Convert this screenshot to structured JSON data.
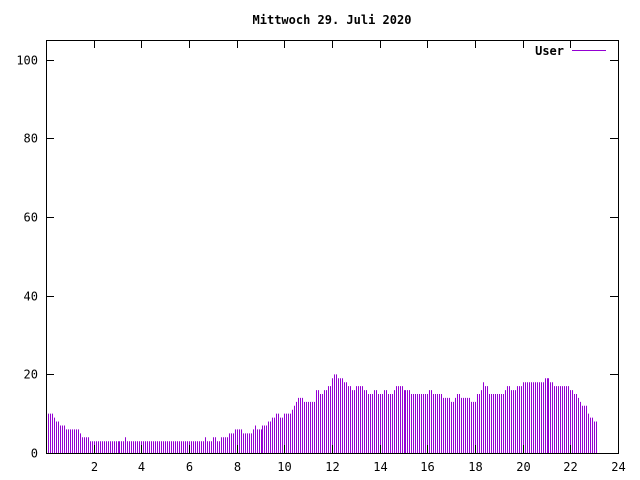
{
  "chart_data": {
    "type": "bar",
    "title": "Mittwoch 29. Juli 2020",
    "xlabel": "",
    "ylabel": "",
    "xlim": [
      0,
      24
    ],
    "ylim": [
      0,
      105
    ],
    "grid": false,
    "legend_position": "top-right",
    "series_color": "#9400d3",
    "xticks": [
      {
        "value": 2,
        "label": "2"
      },
      {
        "value": 4,
        "label": "4"
      },
      {
        "value": 6,
        "label": "6"
      },
      {
        "value": 8,
        "label": "8"
      },
      {
        "value": 10,
        "label": "10"
      },
      {
        "value": 12,
        "label": "12"
      },
      {
        "value": 14,
        "label": "14"
      },
      {
        "value": 16,
        "label": "16"
      },
      {
        "value": 18,
        "label": "18"
      },
      {
        "value": 20,
        "label": "20"
      },
      {
        "value": 22,
        "label": "22"
      },
      {
        "value": 24,
        "label": "24"
      }
    ],
    "yticks": [
      {
        "value": 0,
        "label": "0"
      },
      {
        "value": 20,
        "label": "20"
      },
      {
        "value": 40,
        "label": "40"
      },
      {
        "value": 60,
        "label": "60"
      },
      {
        "value": 80,
        "label": "80"
      },
      {
        "value": 100,
        "label": "100"
      }
    ],
    "series": [
      {
        "name": "User",
        "x_interval_minutes": 5,
        "values": [
          10,
          10,
          10,
          9,
          8,
          8,
          7,
          7,
          7,
          6,
          6,
          6,
          6,
          6,
          6,
          6,
          5,
          4,
          4,
          4,
          4,
          3,
          3,
          3,
          3,
          3,
          3,
          3,
          3,
          3,
          3,
          3,
          3,
          3,
          3,
          3,
          3,
          3,
          3,
          4,
          3,
          3,
          3,
          3,
          3,
          3,
          3,
          3,
          3,
          3,
          3,
          3,
          3,
          3,
          3,
          3,
          3,
          3,
          3,
          3,
          3,
          3,
          3,
          3,
          3,
          3,
          3,
          3,
          3,
          3,
          3,
          3,
          3,
          3,
          3,
          3,
          3,
          3,
          3,
          4,
          3,
          3,
          3,
          4,
          4,
          3,
          3,
          4,
          4,
          4,
          4,
          5,
          5,
          5,
          6,
          6,
          6,
          6,
          5,
          5,
          5,
          5,
          5,
          6,
          7,
          6,
          6,
          6,
          7,
          7,
          7,
          8,
          8,
          9,
          9,
          10,
          10,
          9,
          9,
          10,
          10,
          10,
          10,
          11,
          12,
          13,
          14,
          14,
          14,
          13,
          13,
          13,
          13,
          13,
          13,
          16,
          16,
          15,
          15,
          16,
          16,
          17,
          17,
          19,
          20,
          20,
          19,
          19,
          19,
          18,
          18,
          17,
          17,
          16,
          16,
          17,
          17,
          17,
          17,
          16,
          16,
          15,
          15,
          15,
          16,
          16,
          15,
          15,
          15,
          16,
          16,
          15,
          15,
          15,
          16,
          17,
          17,
          17,
          17,
          16,
          16,
          16,
          16,
          15,
          15,
          15,
          15,
          15,
          15,
          15,
          15,
          15,
          16,
          16,
          15,
          15,
          15,
          15,
          15,
          14,
          14,
          14,
          14,
          13,
          13,
          14,
          15,
          15,
          14,
          14,
          14,
          14,
          14,
          13,
          13,
          13,
          15,
          15,
          16,
          18,
          17,
          17,
          15,
          15,
          15,
          15,
          15,
          15,
          15,
          15,
          16,
          17,
          17,
          16,
          16,
          16,
          17,
          17,
          17,
          18,
          18,
          18,
          18,
          18,
          18,
          18,
          18,
          18,
          18,
          18,
          19,
          19,
          19,
          18,
          18,
          17,
          17,
          17,
          17,
          17,
          17,
          17,
          17,
          16,
          16,
          15,
          15,
          14,
          13,
          12,
          12,
          12,
          10,
          9,
          9,
          8,
          8
        ]
      }
    ]
  }
}
